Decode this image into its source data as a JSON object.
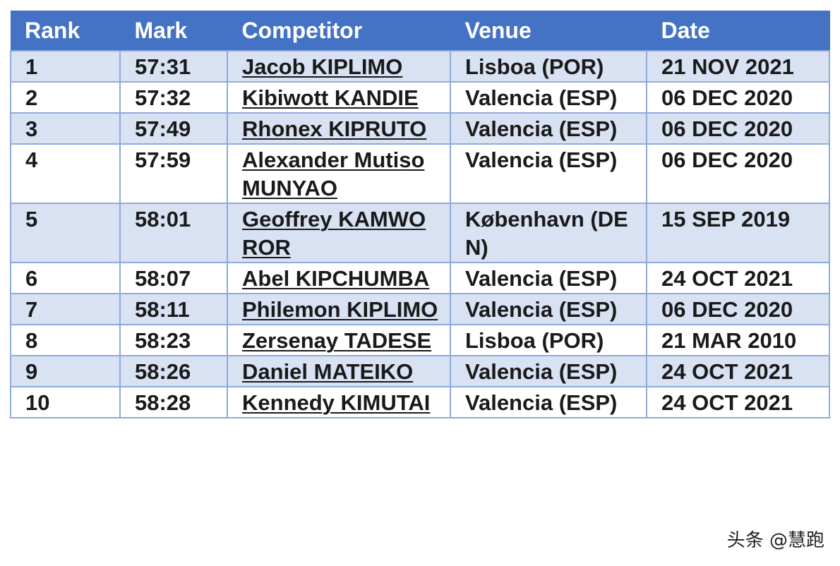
{
  "table": {
    "headers": [
      "Rank",
      "Mark",
      "Competitor",
      "Venue",
      "Date"
    ],
    "rows": [
      {
        "rank": "1",
        "mark": "57:31",
        "competitor": "Jacob KIPLIMO",
        "venue": "Lisboa (POR)",
        "date": "21 NOV 2021"
      },
      {
        "rank": "2",
        "mark": "57:32",
        "competitor": "Kibiwott KANDIE",
        "venue": "Valencia (ESP)",
        "date": "06 DEC 2020"
      },
      {
        "rank": "3",
        "mark": "57:49",
        "competitor": "Rhonex KIPRUTO",
        "venue": "Valencia (ESP)",
        "date": "06 DEC 2020"
      },
      {
        "rank": "4",
        "mark": "57:59",
        "competitor": "Alexander Mutiso MUNYAO",
        "venue": "Valencia (ESP)",
        "date": "06 DEC 2020"
      },
      {
        "rank": "5",
        "mark": "58:01",
        "competitor": "Geoffrey KAMWOROR",
        "venue": "København (DEN)",
        "date": "15 SEP 2019"
      },
      {
        "rank": "6",
        "mark": "58:07",
        "competitor": "Abel KIPCHUMBA",
        "venue": "Valencia (ESP)",
        "date": "24 OCT 2021"
      },
      {
        "rank": "7",
        "mark": "58:11",
        "competitor": "Philemon KIPLIMO",
        "venue": "Valencia (ESP)",
        "date": "06 DEC 2020"
      },
      {
        "rank": "8",
        "mark": "58:23",
        "competitor": "Zersenay TADESE",
        "venue": "Lisboa (POR)",
        "date": "21 MAR 2010"
      },
      {
        "rank": "9",
        "mark": "58:26",
        "competitor": "Daniel MATEIKO",
        "venue": "Valencia (ESP)",
        "date": "24 OCT 2021"
      },
      {
        "rank": "10",
        "mark": "58:28",
        "competitor": "Kennedy KIMUTAI",
        "venue": "Valencia (ESP)",
        "date": "24 OCT 2021"
      }
    ]
  },
  "watermark": "头条 @慧跑",
  "colors": {
    "header": "#4472c4",
    "row_alt": "#d9e2f3",
    "border": "#8eaadb"
  }
}
